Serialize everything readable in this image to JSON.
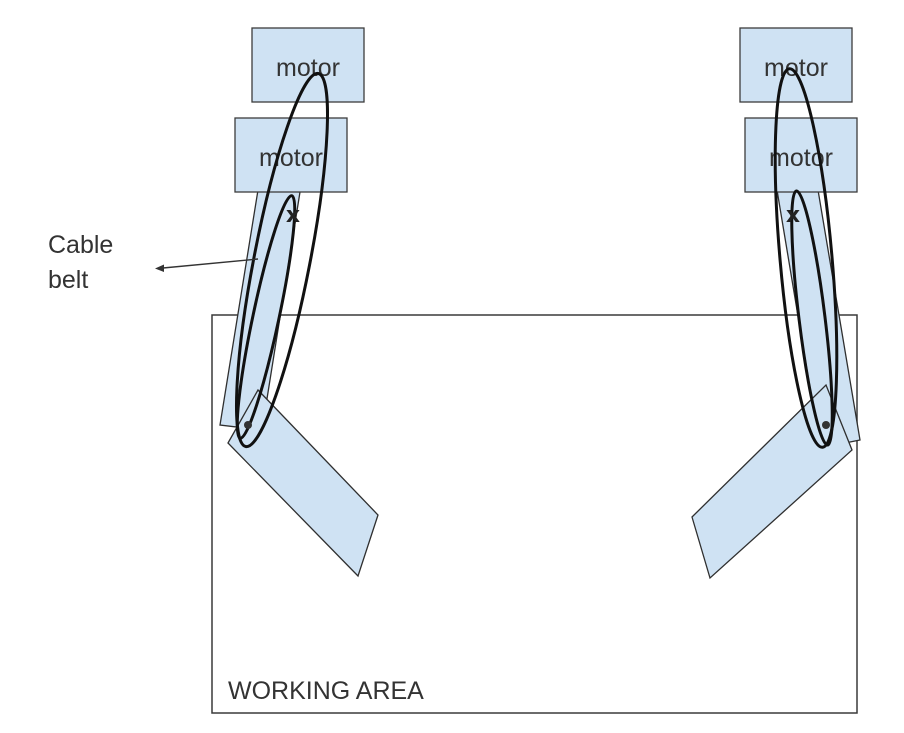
{
  "diagram": {
    "left_arm": {
      "top_motor_label": "motor",
      "second_motor_label": "motor",
      "joint_mark": "x"
    },
    "right_arm": {
      "top_motor_label": "motor",
      "second_motor_label": "motor",
      "joint_mark": "x"
    },
    "cable_belt_label_line1": "Cable",
    "cable_belt_label_line2": "belt",
    "working_area_label": "WORKING AREA"
  },
  "colors": {
    "component_fill": "#cfe2f3",
    "outline": "#333333",
    "belt": "#111111",
    "background": "#ffffff"
  }
}
